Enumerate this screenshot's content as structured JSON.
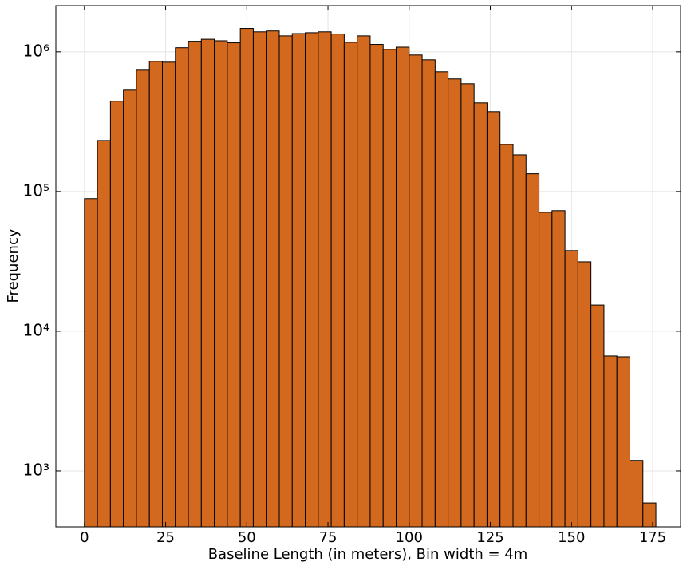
{
  "chart_data": {
    "type": "histogram",
    "xlabel": "Baseline Length (in meters), Bin width = 4m",
    "ylabel": "Frequency",
    "bins": [
      0,
      4,
      8,
      12,
      16,
      20,
      24,
      28,
      32,
      36,
      40,
      44,
      48,
      52,
      56,
      60,
      64,
      68,
      72,
      76,
      80,
      84,
      88,
      92,
      96,
      100,
      104,
      108,
      112,
      116,
      120,
      124,
      128,
      132,
      136,
      140,
      144,
      148,
      152,
      156,
      160,
      164,
      168,
      172,
      176
    ],
    "values": [
      89000,
      232000,
      443000,
      532000,
      739000,
      854000,
      843000,
      1070000,
      1190000,
      1230000,
      1200000,
      1160000,
      1470000,
      1390000,
      1410000,
      1300000,
      1350000,
      1370000,
      1390000,
      1340000,
      1170000,
      1300000,
      1130000,
      1040000,
      1080000,
      949000,
      877000,
      720000,
      640000,
      591000,
      431000,
      373000,
      217000,
      183000,
      134000,
      71000,
      73000,
      37800,
      31400,
      15400,
      6650,
      6560,
      1190,
      590
    ],
    "color": "#d2691e",
    "edgecolor": "#000000",
    "xlim": [
      -8.8,
      183.6
    ],
    "ylim": [
      398,
      2140000
    ],
    "ylog": true,
    "xticks": [
      0,
      25,
      50,
      75,
      100,
      125,
      150,
      175
    ],
    "yticks": [
      {
        "value": 1000,
        "label": "10³"
      },
      {
        "value": 10000,
        "label": "10⁴"
      },
      {
        "value": 100000,
        "label": "10⁵"
      },
      {
        "value": 1000000,
        "label": "10⁶"
      }
    ],
    "grid": true
  }
}
